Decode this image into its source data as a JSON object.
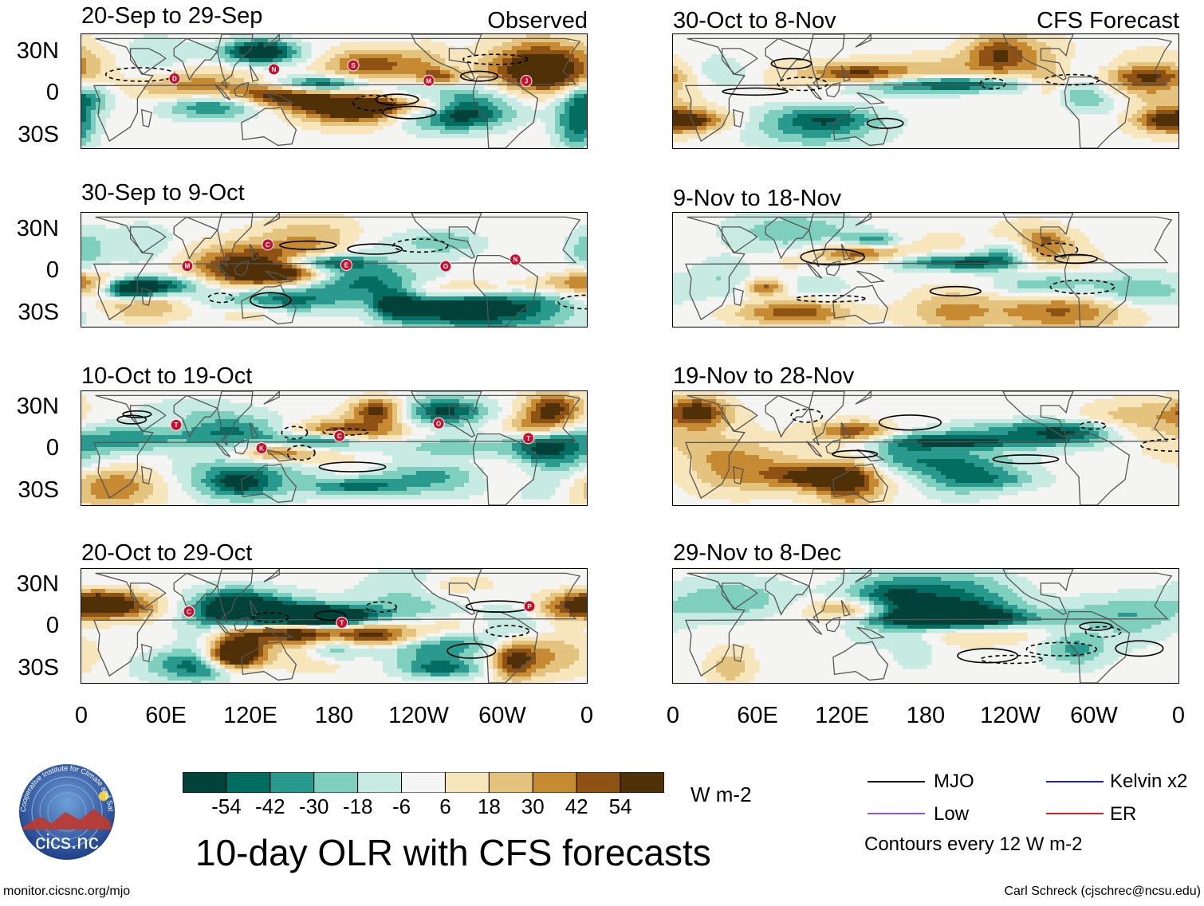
{
  "panels": [
    {
      "title": "20-Sep to 29-Sep",
      "tag": "Observed",
      "seed": 1,
      "source": "obs",
      "cyclones": [
        "D",
        "N",
        "S",
        "M",
        "J"
      ]
    },
    {
      "title": "30-Sep to 9-Oct",
      "tag": "",
      "seed": 2,
      "source": "obs",
      "cyclones": [
        "M",
        "C",
        "E",
        "O",
        "N"
      ]
    },
    {
      "title": "10-Oct to 19-Oct",
      "tag": "",
      "seed": 3,
      "source": "obs",
      "cyclones": [
        "T",
        "K",
        "C",
        "O",
        "T"
      ]
    },
    {
      "title": "20-Oct to 29-Oct",
      "tag": "",
      "seed": 4,
      "source": "obs",
      "cyclones": [
        "C",
        "T",
        "P"
      ]
    },
    {
      "title": "30-Oct to 8-Nov",
      "tag": "CFS Forecast",
      "seed": 5,
      "source": "cfs",
      "cyclones": []
    },
    {
      "title": "9-Nov to 18-Nov",
      "tag": "",
      "seed": 6,
      "source": "cfs",
      "cyclones": []
    },
    {
      "title": "19-Nov to 28-Nov",
      "tag": "",
      "seed": 7,
      "source": "cfs",
      "cyclones": []
    },
    {
      "title": "29-Nov to 8-Dec",
      "tag": "",
      "seed": 8,
      "source": "cfs",
      "cyclones": []
    }
  ],
  "lat_labels": [
    "30N",
    "0",
    "30S"
  ],
  "lon_labels": [
    "0",
    "60E",
    "120E",
    "180",
    "120W",
    "60W",
    "0"
  ],
  "colorbar": {
    "colors": [
      "#00413a",
      "#036d62",
      "#2a998e",
      "#7fcfbf",
      "#c7ebe3",
      "#f5f5f5",
      "#f7e6bc",
      "#e3c37e",
      "#c68a33",
      "#8d5214",
      "#4f3007"
    ],
    "ticks": [
      "-54",
      "-42",
      "-30",
      "-18",
      "-6",
      "6",
      "18",
      "30",
      "42",
      "54"
    ],
    "units": "W m-2"
  },
  "title": "10-day OLR with CFS forecasts",
  "legend": {
    "items": [
      {
        "label": "MJO",
        "color": "#000000"
      },
      {
        "label": "Kelvin x2",
        "color": "#1f1fc8"
      },
      {
        "label": "Low",
        "color": "#9b4fd6"
      },
      {
        "label": "ER",
        "color": "#e02020"
      }
    ],
    "note": "Contours every 12 W m-2"
  },
  "logo": {
    "text": "cics.nc",
    "ring_text": "Cooperative Institute for Climate and Satellites"
  },
  "footer": {
    "left": "monitor.cicsnc.org/mjo",
    "right": "Carl Schreck (cjschrec@ncsu.edu)"
  }
}
